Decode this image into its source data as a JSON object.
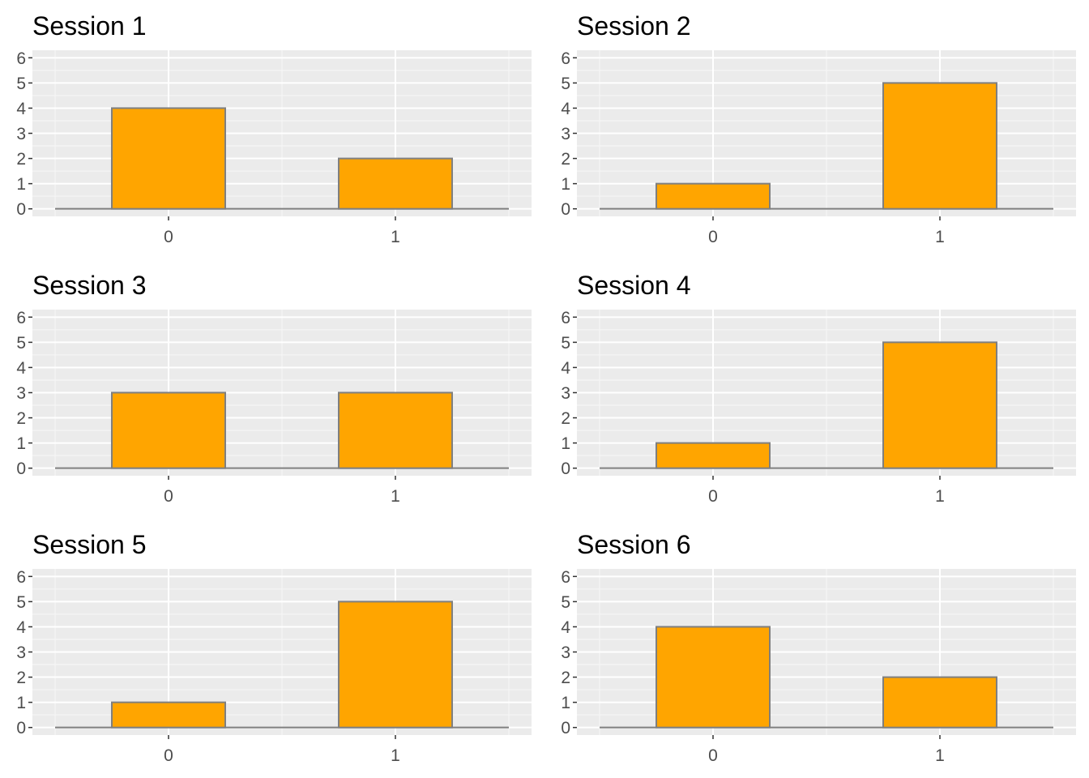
{
  "colors": {
    "bar_fill": "#FFA500",
    "bar_outline": "#7F7F7F",
    "panel_background": "#EBEBEB",
    "grid_major": "#FFFFFF",
    "grid_minor": "#F5F5F5",
    "tick_text": "#4D4D4D",
    "title_text": "#000000"
  },
  "chart_data": [
    {
      "type": "bar",
      "title": "Session 1",
      "categories": [
        "0",
        "1"
      ],
      "values": [
        4,
        2
      ],
      "xlabel": "",
      "ylabel": "",
      "ylim": [
        0,
        6
      ],
      "y_ticks": [
        "0",
        "1",
        "2",
        "3",
        "4",
        "5",
        "6"
      ],
      "grid": true,
      "legend": "none"
    },
    {
      "type": "bar",
      "title": "Session 2",
      "categories": [
        "0",
        "1"
      ],
      "values": [
        1,
        5
      ],
      "xlabel": "",
      "ylabel": "",
      "ylim": [
        0,
        6
      ],
      "y_ticks": [
        "0",
        "1",
        "2",
        "3",
        "4",
        "5",
        "6"
      ],
      "grid": true,
      "legend": "none"
    },
    {
      "type": "bar",
      "title": "Session 3",
      "categories": [
        "0",
        "1"
      ],
      "values": [
        3,
        3
      ],
      "xlabel": "",
      "ylabel": "",
      "ylim": [
        0,
        6
      ],
      "y_ticks": [
        "0",
        "1",
        "2",
        "3",
        "4",
        "5",
        "6"
      ],
      "grid": true,
      "legend": "none"
    },
    {
      "type": "bar",
      "title": "Session 4",
      "categories": [
        "0",
        "1"
      ],
      "values": [
        1,
        5
      ],
      "xlabel": "",
      "ylabel": "",
      "ylim": [
        0,
        6
      ],
      "y_ticks": [
        "0",
        "1",
        "2",
        "3",
        "4",
        "5",
        "6"
      ],
      "grid": true,
      "legend": "none"
    },
    {
      "type": "bar",
      "title": "Session 5",
      "categories": [
        "0",
        "1"
      ],
      "values": [
        1,
        5
      ],
      "xlabel": "",
      "ylabel": "",
      "ylim": [
        0,
        6
      ],
      "y_ticks": [
        "0",
        "1",
        "2",
        "3",
        "4",
        "5",
        "6"
      ],
      "grid": true,
      "legend": "none"
    },
    {
      "type": "bar",
      "title": "Session 6",
      "categories": [
        "0",
        "1"
      ],
      "values": [
        4,
        2
      ],
      "xlabel": "",
      "ylabel": "",
      "ylim": [
        0,
        6
      ],
      "y_ticks": [
        "0",
        "1",
        "2",
        "3",
        "4",
        "5",
        "6"
      ],
      "grid": true,
      "legend": "none"
    }
  ]
}
